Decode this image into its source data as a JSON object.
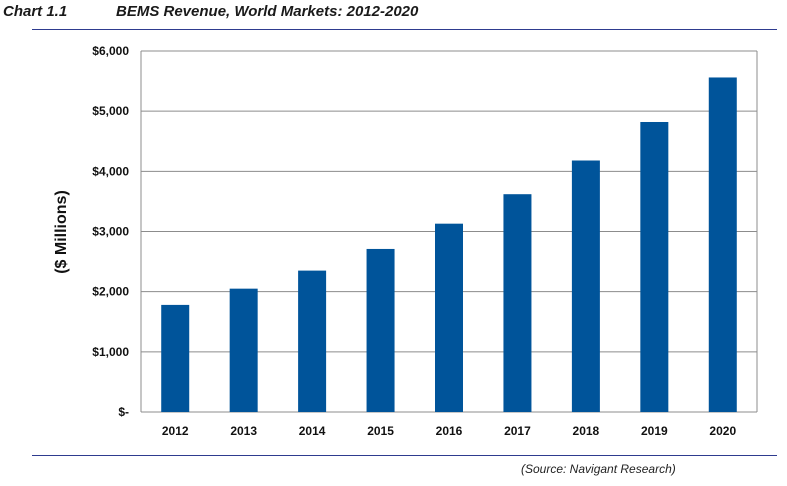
{
  "header": {
    "chart_number": "Chart 1.1",
    "title": "BEMS Revenue, World Markets: 2012-2020"
  },
  "source": "(Source: Navigant Research)",
  "colors": {
    "bar": "#00549a",
    "grid": "#8c8c8c",
    "rule": "#2e3b8f"
  },
  "chart_data": {
    "type": "bar",
    "title": "BEMS Revenue, World Markets: 2012-2020",
    "xlabel": "",
    "ylabel": "($ Millions)",
    "categories": [
      "2012",
      "2013",
      "2014",
      "2015",
      "2016",
      "2017",
      "2018",
      "2019",
      "2020"
    ],
    "values": [
      1780,
      2050,
      2350,
      2710,
      3130,
      3620,
      4180,
      4820,
      5560
    ],
    "ylim": [
      0,
      6000
    ],
    "yticks": [
      0,
      1000,
      2000,
      3000,
      4000,
      5000,
      6000
    ],
    "ytick_labels": [
      "$-",
      "$1,000",
      "$2,000",
      "$3,000",
      "$4,000",
      "$5,000",
      "$6,000"
    ],
    "grid": true,
    "legend": "none"
  }
}
